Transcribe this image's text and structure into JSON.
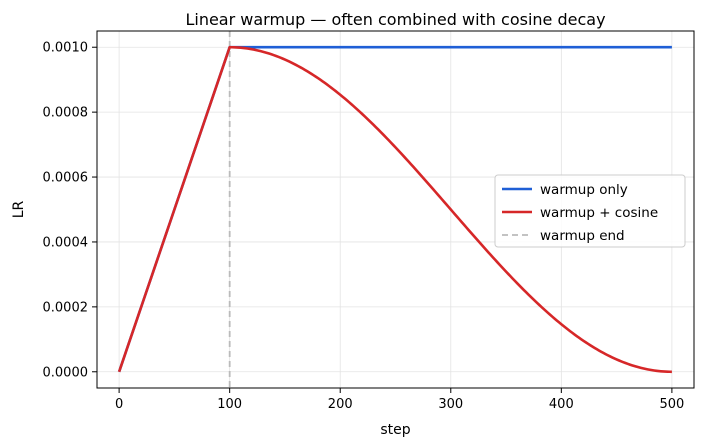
{
  "chart_data": {
    "type": "line",
    "title": "Linear warmup — often combined with cosine decay",
    "xlabel": "step",
    "ylabel": "LR",
    "xlim": [
      -20,
      520
    ],
    "ylim": [
      -5e-05,
      0.00105
    ],
    "xticks": [
      0,
      100,
      200,
      300,
      400,
      500
    ],
    "xtick_labels": [
      "0",
      "100",
      "200",
      "300",
      "400",
      "500"
    ],
    "yticks": [
      0,
      0.0002,
      0.0004,
      0.0006,
      0.0008,
      0.001
    ],
    "ytick_labels": [
      "0.0000",
      "0.0002",
      "0.0004",
      "0.0006",
      "0.0008",
      "0.0010"
    ],
    "grid": true,
    "legend_position": "center-right",
    "warmup_steps": 100,
    "total_steps": 500,
    "peak_lr": 0.001,
    "series": [
      {
        "name": "warmup only",
        "color": "#1f5fd6",
        "style": "solid",
        "x": [
          0,
          100,
          500
        ],
        "y": [
          0,
          0.001,
          0.001
        ]
      },
      {
        "name": "warmup + cosine",
        "color": "#d62728",
        "style": "solid",
        "x": [
          0,
          100,
          150,
          200,
          250,
          300,
          350,
          400,
          450,
          500
        ],
        "y": [
          0,
          0.001,
          0.000962,
          0.000854,
          0.000691,
          0.0005,
          0.000309,
          0.000146,
          3.8e-05,
          0
        ]
      },
      {
        "name": "warmup end",
        "color": "#bbbbbb",
        "style": "dashed",
        "type": "vline",
        "x": 100
      }
    ]
  }
}
